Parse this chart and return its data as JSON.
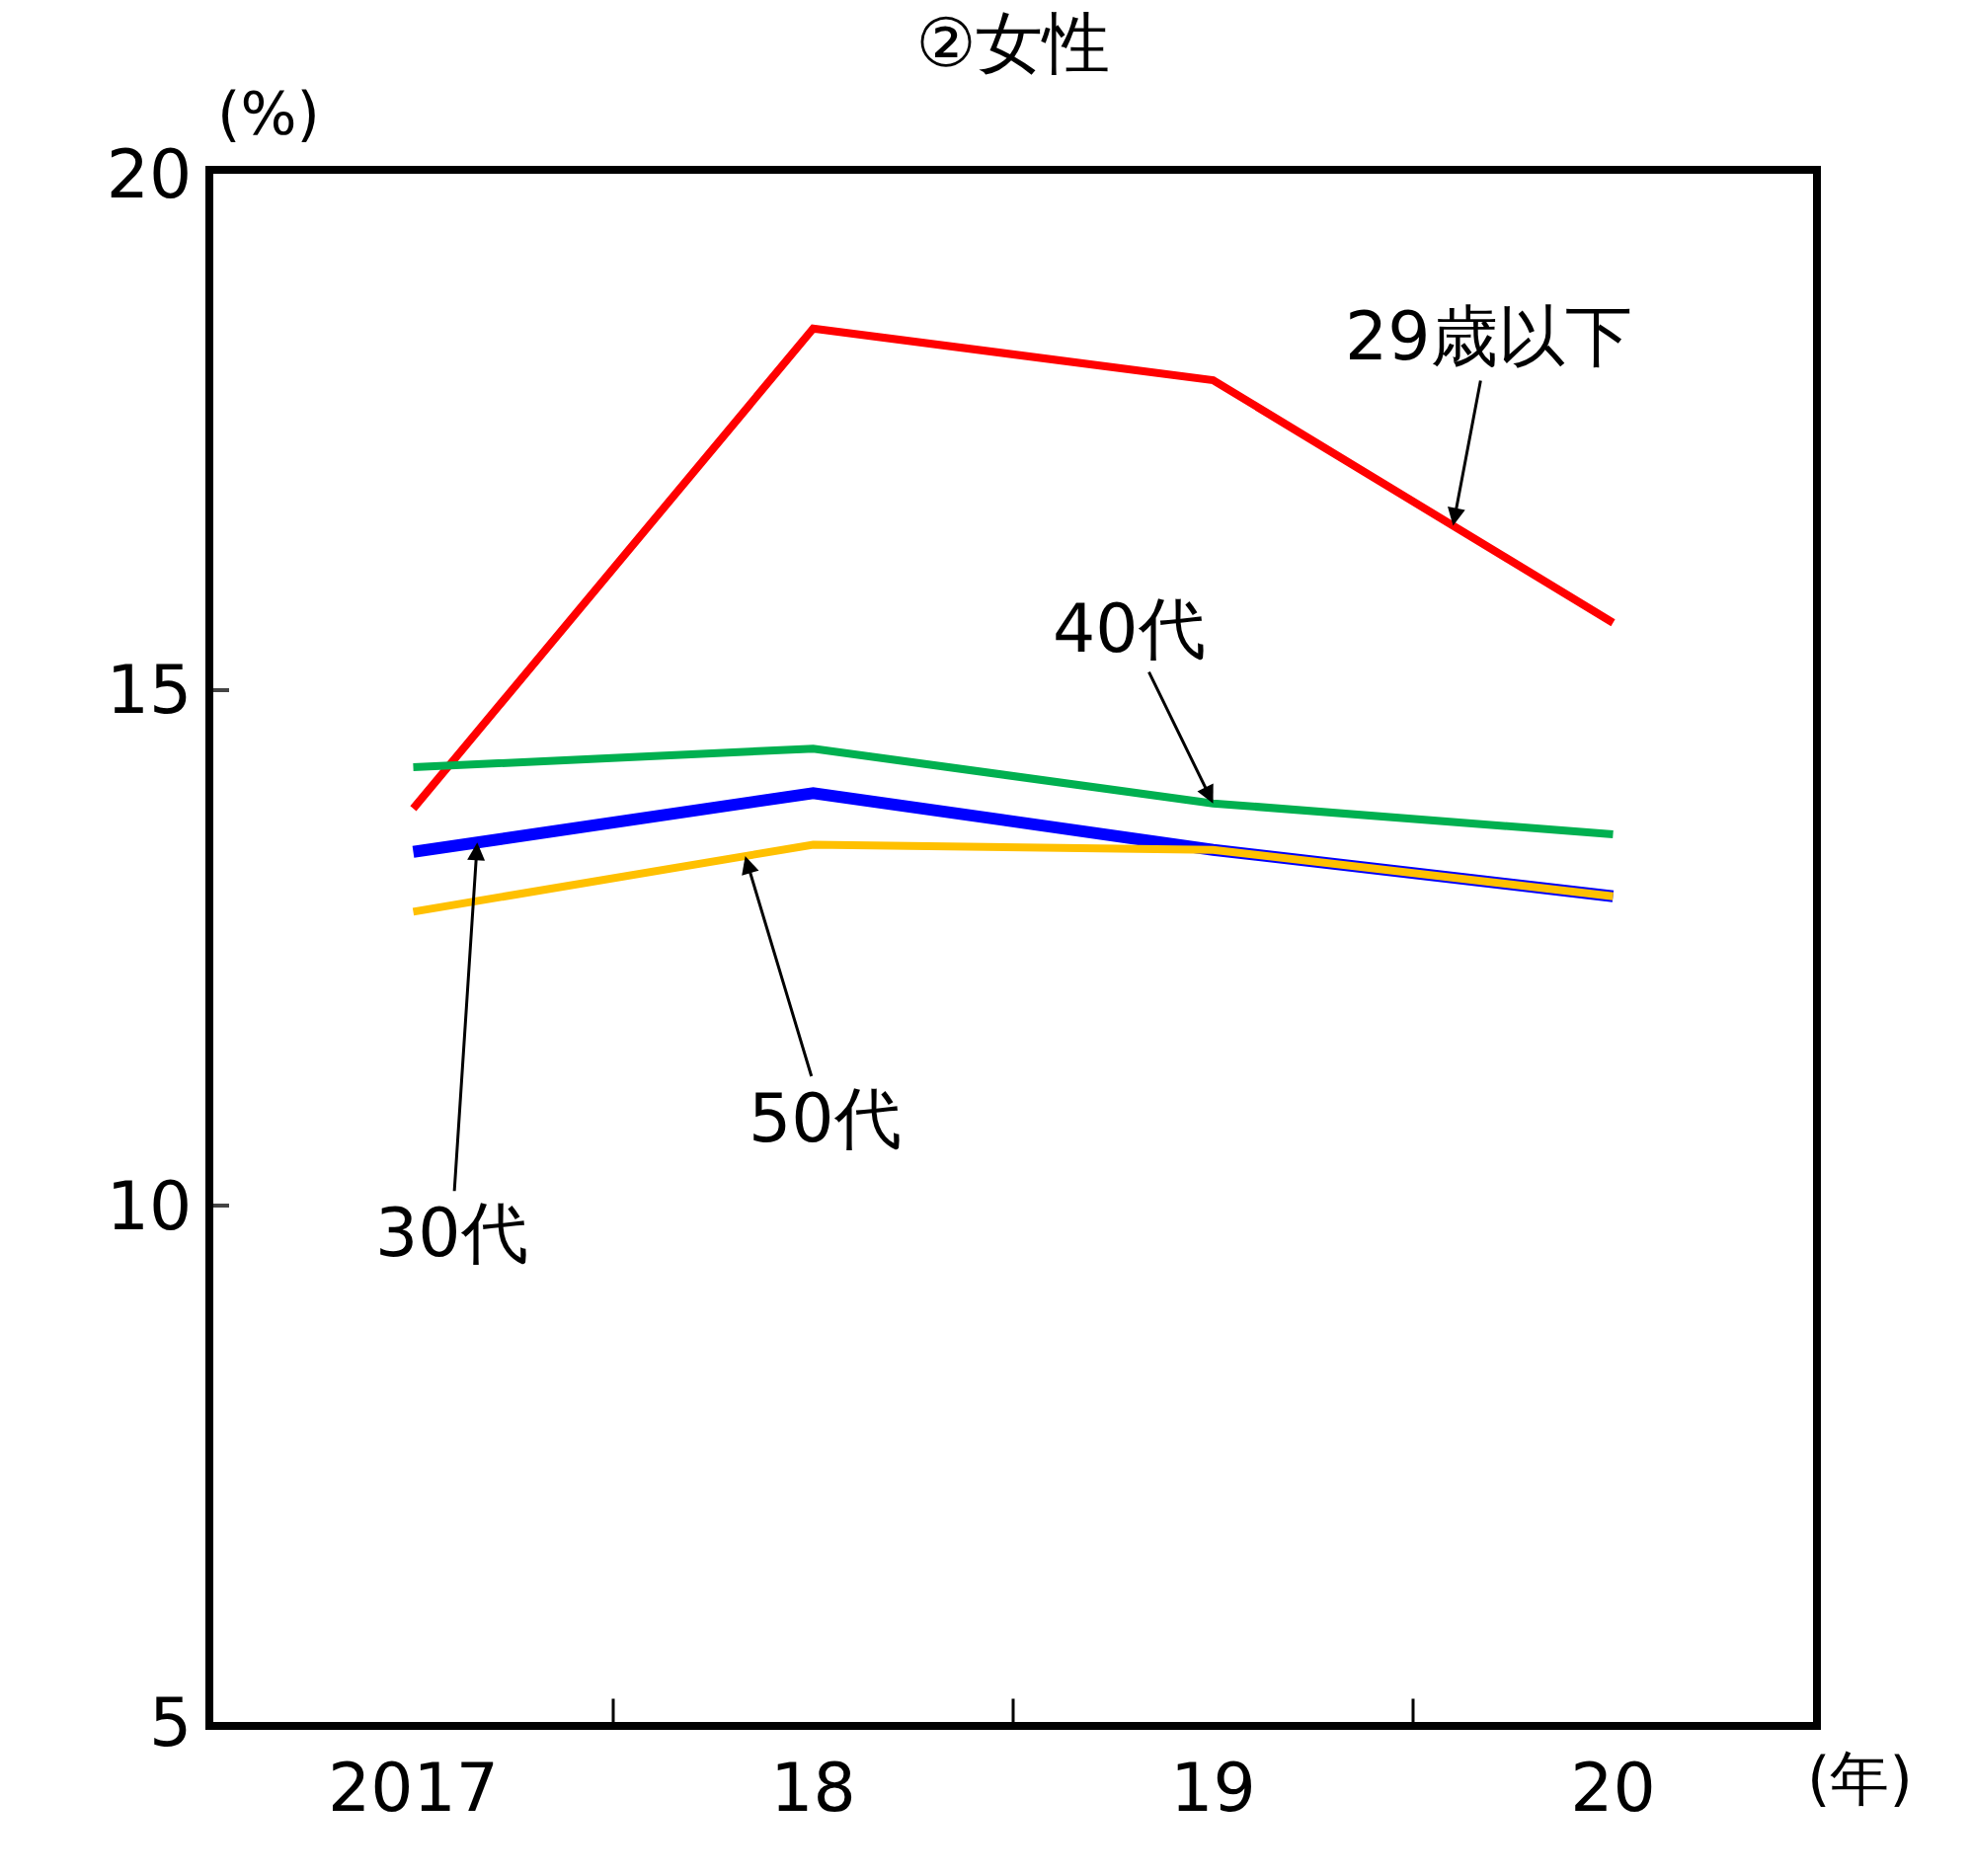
{
  "chart_data": {
    "type": "line",
    "title": "②女性",
    "ylabel": "(%)",
    "xlabel": "(年)",
    "categories": [
      "2017",
      "18",
      "19",
      "20"
    ],
    "ylim": [
      5,
      20
    ],
    "yticks": [
      5,
      10,
      15,
      20
    ],
    "legend": false,
    "marker": "none",
    "line_style": "solid",
    "series": [
      {
        "name": "29歳以下",
        "color": "#ff0000",
        "values": [
          13.85,
          18.5,
          18.0,
          15.65
        ]
      },
      {
        "name": "40代",
        "color": "#00b050",
        "values": [
          14.25,
          14.43,
          13.9,
          13.6
        ]
      },
      {
        "name": "30代",
        "color": "#0000ff",
        "values": [
          13.43,
          14.0,
          13.45,
          13.0
        ]
      },
      {
        "name": "50代",
        "color": "#ffc000",
        "values": [
          12.85,
          13.5,
          13.45,
          13.0
        ]
      }
    ]
  }
}
